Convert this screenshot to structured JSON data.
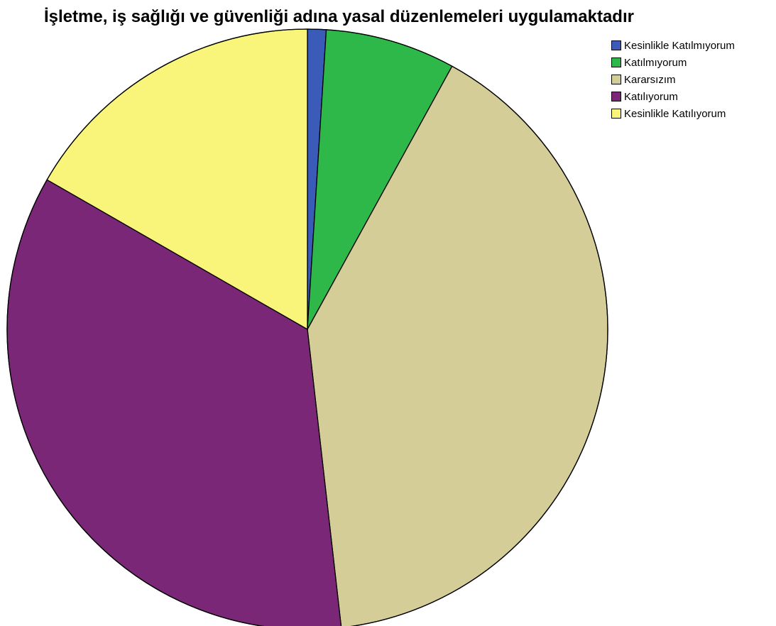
{
  "chart_data": {
    "type": "pie",
    "title": "İşletme, iş sağlığı ve güvenliği adına yasal düzenlemeleri uygulamaktadır",
    "legend_position": "top-right",
    "start_angle_deg": 0,
    "direction": "clockwise",
    "categories": [
      "Kesinlikle Katılmıyorum",
      "Katılmıyorum",
      "Kararsızım",
      "Katılıyorum",
      "Kesinlikle Katılıyorum"
    ],
    "values": [
      1.0,
      7.0,
      40.2,
      35.1,
      16.7
    ],
    "colors": [
      "#3b5bb8",
      "#2fb84a",
      "#d4cd98",
      "#7b2777",
      "#f9f57a"
    ]
  }
}
